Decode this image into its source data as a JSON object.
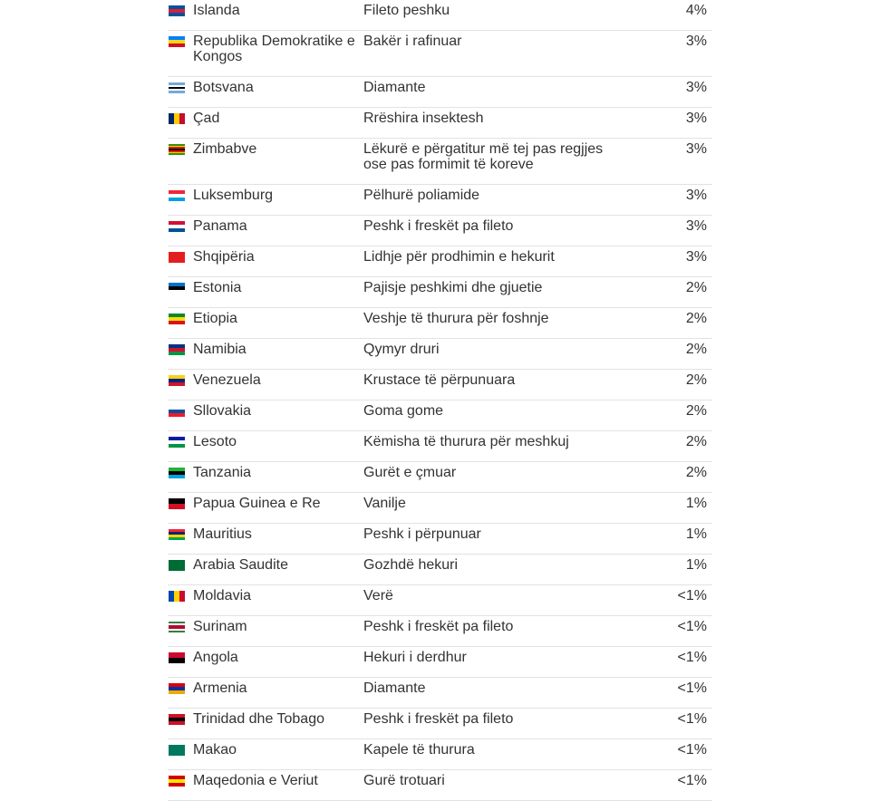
{
  "table": {
    "rows": [
      [
        "Islanda",
        "Fileto peshku",
        "4%"
      ],
      [
        "Republika Demokratike e Kongos",
        "Bakër i rafinuar",
        "3%"
      ],
      [
        "Botsvana",
        "Diamante",
        "3%"
      ],
      [
        "Çad",
        "Rrëshira insektesh",
        "3%"
      ],
      [
        "Zimbabve",
        "Lëkurë e përgatitur më tej pas regjjes ose pas formimit të koreve",
        "3%"
      ],
      [
        "Luksemburg",
        "Pëlhurë poliamide",
        "3%"
      ],
      [
        "Panama",
        "Peshk i freskët pa fileto",
        "3%"
      ],
      [
        "Shqipëria",
        "Lidhje për prodhimin e hekurit",
        "3%"
      ],
      [
        "Estonia",
        "Pajisje peshkimi dhe gjuetie",
        "2%"
      ],
      [
        "Etiopia",
        "Veshje të thurura për foshnje",
        "2%"
      ],
      [
        "Namibia",
        "Qymyr druri",
        "2%"
      ],
      [
        "Venezuela",
        "Krustace të përpunuara",
        "2%"
      ],
      [
        "Sllovakia",
        "Goma gome",
        "2%"
      ],
      [
        "Lesoto",
        "Këmisha të thurura për meshkuj",
        "2%"
      ],
      [
        "Tanzania",
        "Gurët e çmuar",
        "2%"
      ],
      [
        "Papua Guinea e Re",
        "Vanilje",
        "1%"
      ],
      [
        "Mauritius",
        "Peshk i përpunuar",
        "1%"
      ],
      [
        "Arabia Saudite",
        "Gozhdë hekuri",
        "1%"
      ],
      [
        "Moldavia",
        "Verë",
        "<1%"
      ],
      [
        "Surinam",
        "Peshk i freskët pa fileto",
        "<1%"
      ],
      [
        "Angola",
        "Hekuri i derdhur",
        "<1%"
      ],
      [
        "Armenia",
        "Diamante",
        "<1%"
      ],
      [
        "Trinidad dhe Tobago",
        "Peshk i freskët pa fileto",
        "<1%"
      ],
      [
        "Makao",
        "Kapele të thurura",
        "<1%"
      ],
      [
        "Maqedonia e Veriut",
        "Gurë trotuari",
        "<1%"
      ]
    ]
  }
}
